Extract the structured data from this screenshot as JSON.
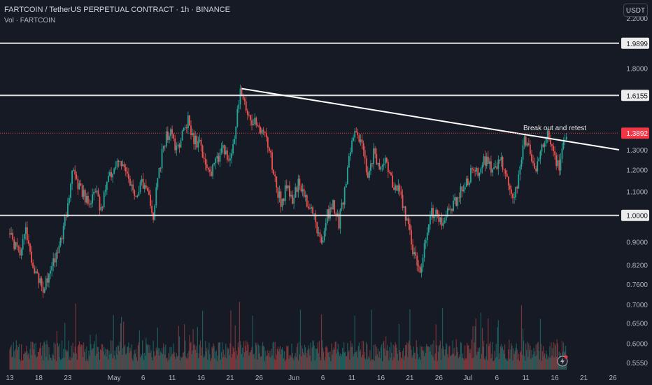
{
  "header": {
    "title": "FARTCOIN / TetherUS PERPETUAL CONTRACT · 1h · BINANCE",
    "volume_label": "Vol · FARTCOIN",
    "currency": "USDT"
  },
  "annotation": "Break out and retest",
  "chart_data": {
    "type": "candlestick",
    "symbol": "FARTCOIN/USDT",
    "interval": "1h",
    "exchange": "BINANCE",
    "last_price": "1.3892",
    "y_scale": "log",
    "ylim": [
      0.54,
      2.3
    ],
    "y_ticks": [
      "2.2000",
      "1.8000",
      "1.3000",
      "1.2000",
      "1.1000",
      "0.9000",
      "0.8200",
      "0.7600",
      "0.7000",
      "0.6500",
      "0.6000",
      "0.5550"
    ],
    "x_ticks": [
      "13",
      "18",
      "23",
      "May",
      "6",
      "11",
      "16",
      "21",
      "26",
      "Jun",
      "6",
      "11",
      "16",
      "21",
      "26",
      "Jul",
      "6",
      "11",
      "16",
      "21",
      "26"
    ],
    "x_range": [
      "2025-04-13",
      "2025-07-26"
    ],
    "levels": [
      {
        "label": "1.9899",
        "value": 1.9899
      },
      {
        "label": "1.6155",
        "value": 1.6155
      },
      {
        "label": "1.0000",
        "value": 1.0
      }
    ],
    "trendline": {
      "from": [
        "2025-05-23",
        1.66
      ],
      "to": [
        "2025-07-21",
        1.33
      ]
    },
    "price_path": [
      [
        "2025-04-13",
        0.93
      ],
      [
        "2025-04-15",
        0.86
      ],
      [
        "2025-04-16",
        0.96
      ],
      [
        "2025-04-17",
        0.82
      ],
      [
        "2025-04-18",
        0.78
      ],
      [
        "2025-04-19",
        0.74
      ],
      [
        "2025-04-20",
        0.79
      ],
      [
        "2025-04-21",
        0.84
      ],
      [
        "2025-04-22",
        0.9
      ],
      [
        "2025-04-23",
        1.0
      ],
      [
        "2025-04-24",
        1.2
      ],
      [
        "2025-04-25",
        1.12
      ],
      [
        "2025-04-27",
        1.05
      ],
      [
        "2025-04-28",
        1.12
      ],
      [
        "2025-04-29",
        1.02
      ],
      [
        "2025-04-30",
        1.15
      ],
      [
        "2025-05-01",
        1.2
      ],
      [
        "2025-05-02",
        1.26
      ],
      [
        "2025-05-03",
        1.22
      ],
      [
        "2025-05-04",
        1.12
      ],
      [
        "2025-05-05",
        1.08
      ],
      [
        "2025-05-06",
        1.15
      ],
      [
        "2025-05-07",
        1.1
      ],
      [
        "2025-05-08",
        1.0
      ],
      [
        "2025-05-09",
        1.2
      ],
      [
        "2025-05-10",
        1.35
      ],
      [
        "2025-05-11",
        1.42
      ],
      [
        "2025-05-12",
        1.3
      ],
      [
        "2025-05-13",
        1.38
      ],
      [
        "2025-05-14",
        1.46
      ],
      [
        "2025-05-15",
        1.36
      ],
      [
        "2025-05-16",
        1.32
      ],
      [
        "2025-05-17",
        1.24
      ],
      [
        "2025-05-18",
        1.18
      ],
      [
        "2025-05-19",
        1.26
      ],
      [
        "2025-05-20",
        1.3
      ],
      [
        "2025-05-21",
        1.25
      ],
      [
        "2025-05-22",
        1.35
      ],
      [
        "2025-05-23",
        1.66
      ],
      [
        "2025-05-24",
        1.55
      ],
      [
        "2025-05-25",
        1.45
      ],
      [
        "2025-05-26",
        1.46
      ],
      [
        "2025-05-27",
        1.38
      ],
      [
        "2025-05-28",
        1.3
      ],
      [
        "2025-05-29",
        1.15
      ],
      [
        "2025-05-30",
        1.05
      ],
      [
        "2025-05-31",
        1.12
      ],
      [
        "2025-06-01",
        1.05
      ],
      [
        "2025-06-02",
        1.15
      ],
      [
        "2025-06-03",
        1.1
      ],
      [
        "2025-06-04",
        1.02
      ],
      [
        "2025-06-05",
        0.98
      ],
      [
        "2025-06-06",
        0.88
      ],
      [
        "2025-06-07",
        1.0
      ],
      [
        "2025-06-08",
        1.05
      ],
      [
        "2025-06-09",
        0.97
      ],
      [
        "2025-06-10",
        1.1
      ],
      [
        "2025-06-11",
        1.3
      ],
      [
        "2025-06-12",
        1.42
      ],
      [
        "2025-06-13",
        1.32
      ],
      [
        "2025-06-14",
        1.15
      ],
      [
        "2025-06-15",
        1.28
      ],
      [
        "2025-06-16",
        1.2
      ],
      [
        "2025-06-17",
        1.25
      ],
      [
        "2025-06-18",
        1.15
      ],
      [
        "2025-06-19",
        1.12
      ],
      [
        "2025-06-20",
        1.05
      ],
      [
        "2025-06-21",
        0.95
      ],
      [
        "2025-06-22",
        0.85
      ],
      [
        "2025-06-23",
        0.8
      ],
      [
        "2025-06-24",
        0.9
      ],
      [
        "2025-06-25",
        1.02
      ],
      [
        "2025-06-26",
        1.0
      ],
      [
        "2025-06-27",
        0.96
      ],
      [
        "2025-06-28",
        1.02
      ],
      [
        "2025-06-29",
        1.05
      ],
      [
        "2025-06-30",
        1.1
      ],
      [
        "2025-07-01",
        1.14
      ],
      [
        "2025-07-02",
        1.2
      ],
      [
        "2025-07-03",
        1.18
      ],
      [
        "2025-07-04",
        1.26
      ],
      [
        "2025-07-05",
        1.22
      ],
      [
        "2025-07-06",
        1.2
      ],
      [
        "2025-07-07",
        1.24
      ],
      [
        "2025-07-08",
        1.18
      ],
      [
        "2025-07-09",
        1.05
      ],
      [
        "2025-07-10",
        1.15
      ],
      [
        "2025-07-11",
        1.35
      ],
      [
        "2025-07-12",
        1.28
      ],
      [
        "2025-07-13",
        1.22
      ],
      [
        "2025-07-14",
        1.3
      ],
      [
        "2025-07-15",
        1.38
      ],
      [
        "2025-07-16",
        1.28
      ],
      [
        "2025-07-17",
        1.2
      ],
      [
        "2025-07-18",
        1.38
      ]
    ]
  },
  "colors": {
    "background": "#161a25",
    "up": "#26a69a",
    "down": "#ef5350",
    "last_price": "#f23645",
    "line": "#ffffff",
    "axis_text": "#b2b5be"
  }
}
